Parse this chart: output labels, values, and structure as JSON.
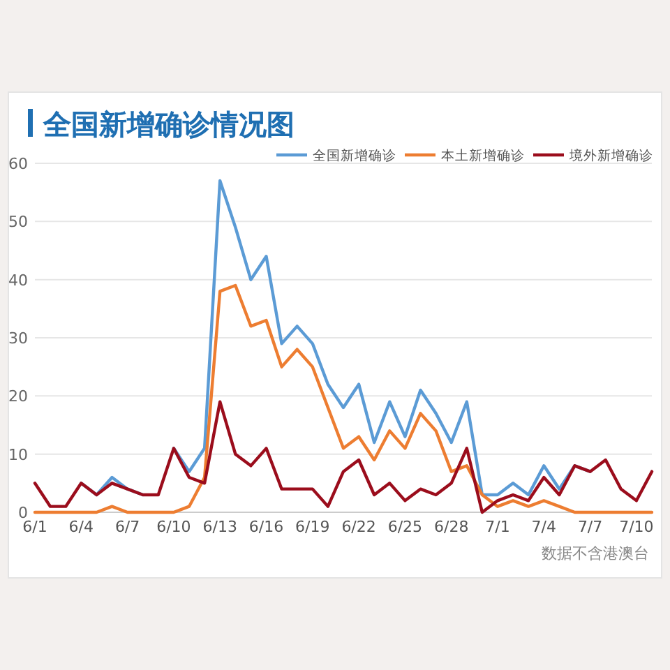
{
  "chart_data": {
    "type": "line",
    "title": "全国新增确诊情况图",
    "categories": [
      "6/1",
      null,
      null,
      "6/4",
      null,
      null,
      "6/7",
      null,
      null,
      "6/10",
      null,
      null,
      "6/13",
      null,
      null,
      "6/16",
      null,
      null,
      "6/19",
      null,
      null,
      "6/22",
      null,
      null,
      "6/25",
      null,
      null,
      "6/28",
      null,
      null,
      "7/1",
      null,
      null,
      "7/4",
      null,
      null,
      "7/7",
      null,
      null,
      "7/10",
      null
    ],
    "series": [
      {
        "name": "全国新增确诊",
        "color": "#5b9bd5",
        "values": [
          null,
          null,
          null,
          5,
          3,
          6,
          4,
          3,
          null,
          11,
          7,
          11,
          57,
          49,
          40,
          44,
          29,
          32,
          29,
          22,
          18,
          22,
          12,
          19,
          13,
          21,
          17,
          12,
          19,
          3,
          3,
          5,
          3,
          8,
          4,
          8,
          7,
          null,
          null,
          null,
          null
        ]
      },
      {
        "name": "本土新增确诊",
        "color": "#ed7d31",
        "values": [
          0,
          0,
          0,
          0,
          0,
          1,
          0,
          0,
          0,
          0,
          1,
          6,
          38,
          39,
          32,
          33,
          25,
          28,
          25,
          18,
          11,
          13,
          9,
          14,
          11,
          17,
          14,
          7,
          8,
          3,
          1,
          2,
          1,
          2,
          1,
          0,
          0,
          0,
          0,
          0,
          0
        ]
      },
      {
        "name": "境外新增确诊",
        "color": "#9b0d1c",
        "values": [
          5,
          1,
          1,
          5,
          3,
          5,
          4,
          3,
          3,
          11,
          6,
          5,
          19,
          10,
          8,
          11,
          4,
          4,
          4,
          1,
          7,
          9,
          3,
          5,
          2,
          4,
          3,
          5,
          11,
          0,
          2,
          3,
          2,
          6,
          3,
          8,
          7,
          9,
          4,
          2,
          7
        ]
      }
    ],
    "ylim": [
      0,
      60
    ],
    "yticks": [
      0,
      10,
      20,
      30,
      40,
      50,
      60
    ],
    "grid": "y",
    "legend": "top right",
    "marker": "none",
    "line_style": "solid",
    "annotations": [
      "数据不含港澳台"
    ]
  }
}
